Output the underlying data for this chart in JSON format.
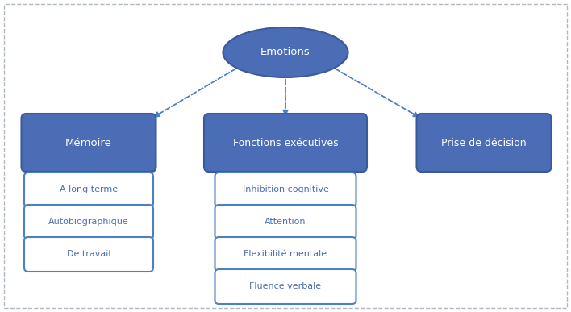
{
  "bg_color": "#ffffff",
  "border_color": "#b0b8c8",
  "blue_fill": "#4a6db5",
  "blue_border": "#3a5a9a",
  "white_fill": "#ffffff",
  "white_border": "#4a80c4",
  "arrow_color": "#4a80c4",
  "text_white": "#ffffff",
  "text_blue": "#4a6db5",
  "emotions_label": "Emotions",
  "memoire_label": "Mémoire",
  "fonctions_label": "Fonctions exécutives",
  "prise_label": "Prise de décision",
  "sub_memoire": [
    "A long terme",
    "Autobiographique",
    "De travail"
  ],
  "sub_fonctions": [
    "Inhibition cognitive",
    "Attention",
    "Flexibilité mentale",
    "Fluence verbale"
  ]
}
